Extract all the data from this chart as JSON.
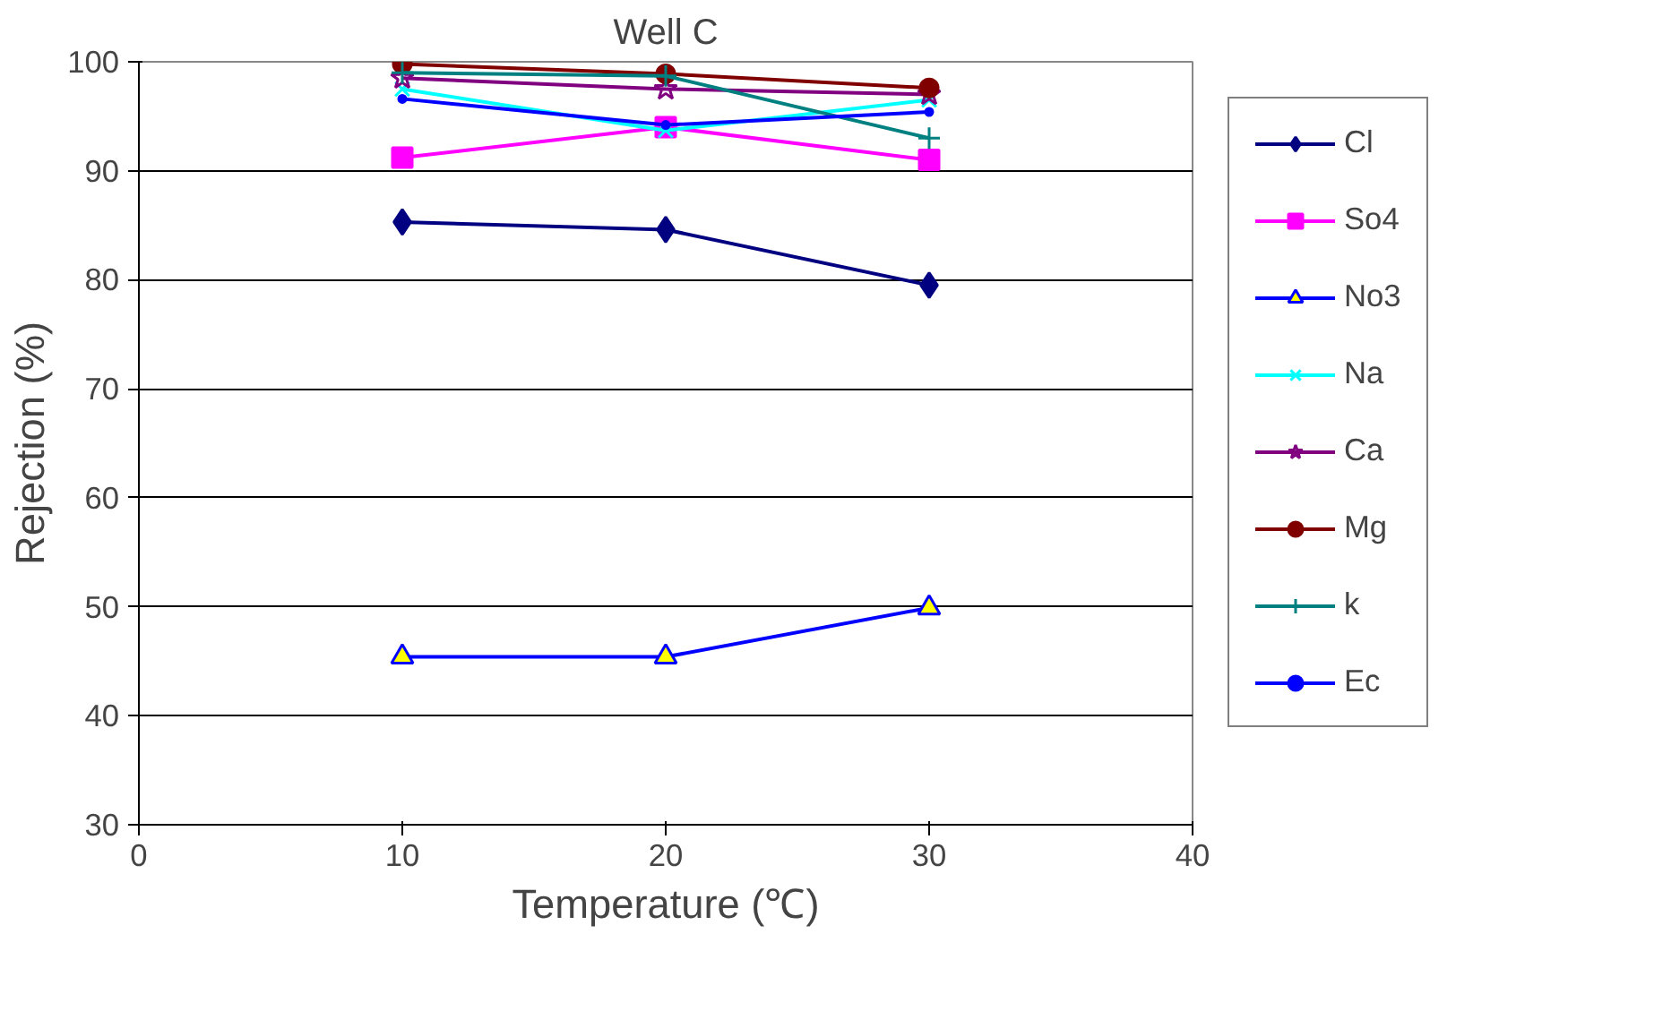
{
  "chart_data": {
    "type": "line",
    "title": "Well C",
    "xlabel": "Temperature (℃)",
    "ylabel": "Rejection (%)",
    "x": [
      10,
      20,
      30
    ],
    "xlim": [
      0,
      40
    ],
    "xticks": [
      0,
      10,
      20,
      30,
      40
    ],
    "ylim": [
      30,
      100
    ],
    "yticks": [
      30,
      40,
      50,
      60,
      70,
      80,
      90,
      100
    ],
    "grid": "y",
    "legend": "right",
    "series": [
      {
        "name": "Cl",
        "color": "#000080",
        "marker": "diamond",
        "values": [
          85.3,
          84.6,
          79.5
        ]
      },
      {
        "name": "So4",
        "color": "#ff00ff",
        "marker": "square",
        "values": [
          91.2,
          94.0,
          91.0
        ]
      },
      {
        "name": "No3",
        "color": "#0000ff",
        "marker": "triangle",
        "values": [
          45.4,
          45.4,
          49.9
        ]
      },
      {
        "name": "Na",
        "color": "#00ffff",
        "marker": "x",
        "values": [
          97.5,
          93.7,
          96.5
        ]
      },
      {
        "name": "Ca",
        "color": "#800080",
        "marker": "star",
        "values": [
          98.5,
          97.5,
          97.0
        ]
      },
      {
        "name": "Mg",
        "color": "#800000",
        "marker": "circle",
        "values": [
          99.8,
          98.9,
          97.6
        ]
      },
      {
        "name": "k",
        "color": "#008080",
        "marker": "cross",
        "values": [
          99.0,
          98.7,
          93.0
        ]
      },
      {
        "name": "Ec",
        "color": "#0000ff",
        "marker": "dot",
        "values": [
          96.6,
          94.2,
          95.4
        ]
      }
    ]
  }
}
